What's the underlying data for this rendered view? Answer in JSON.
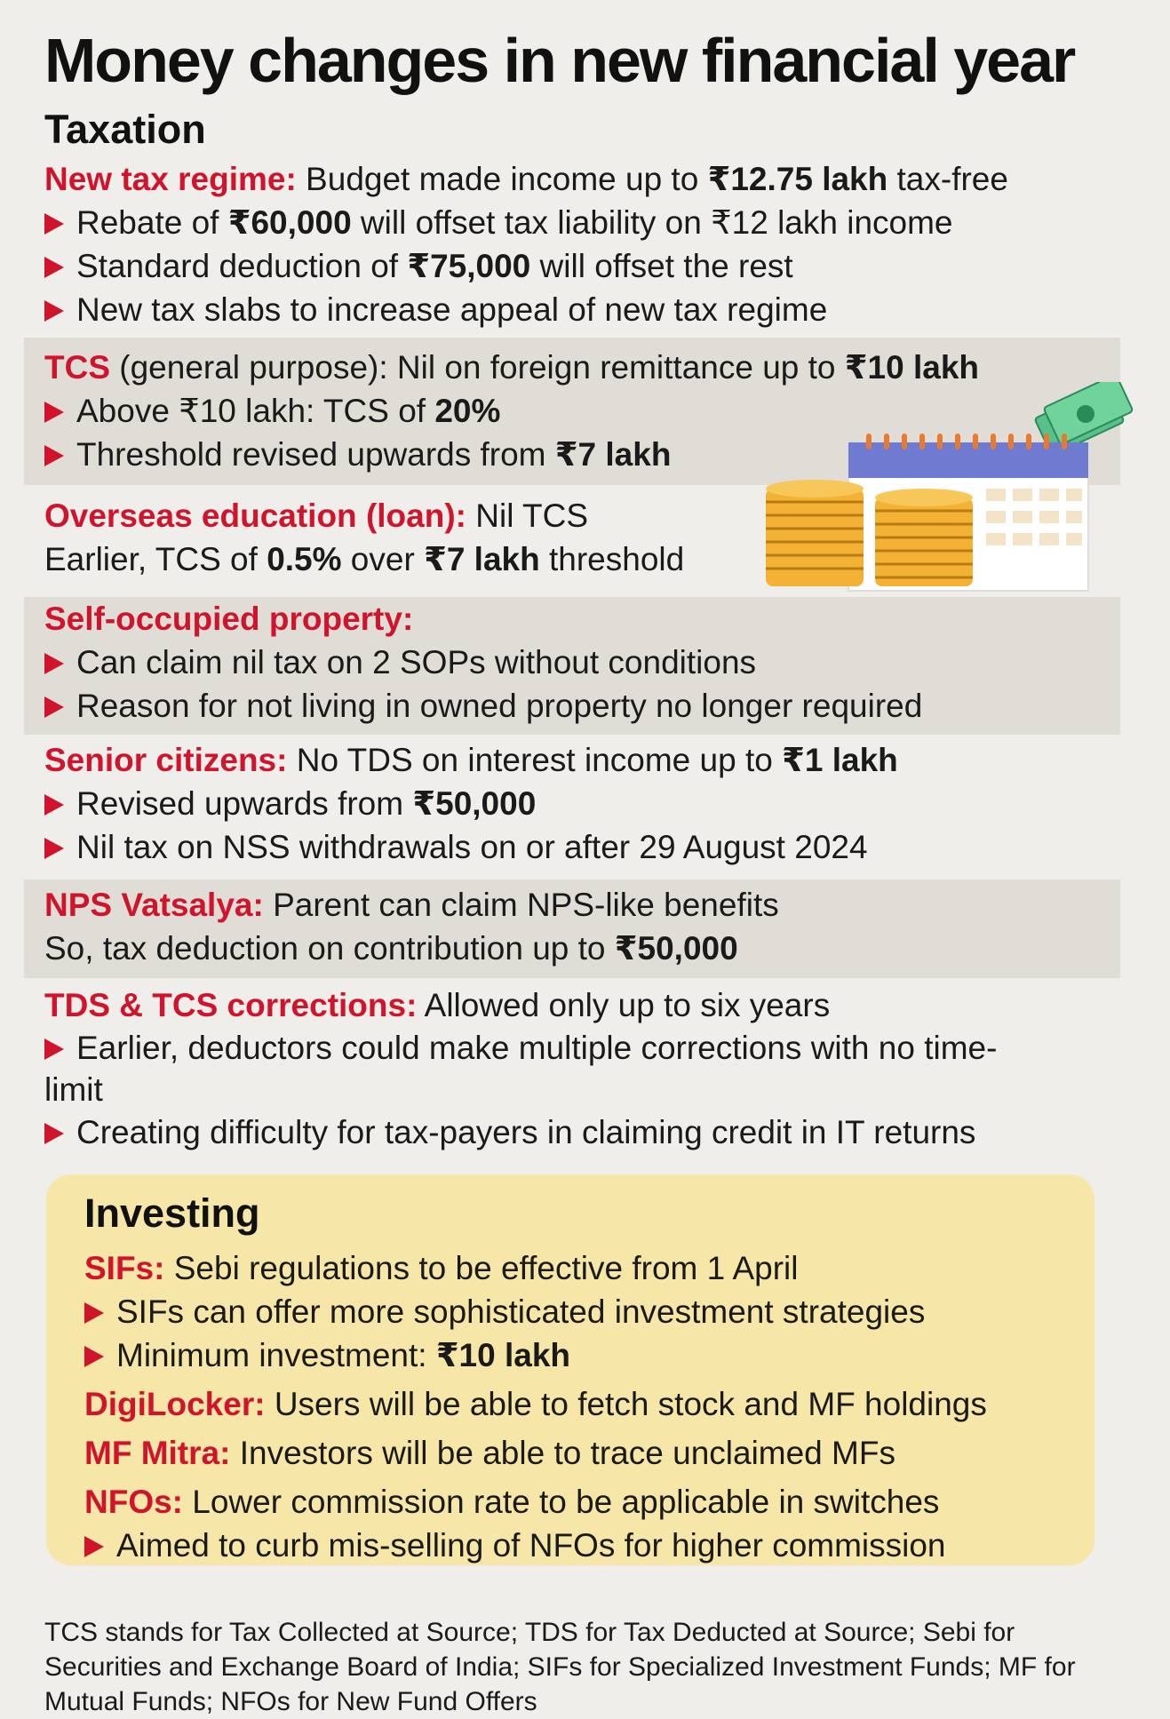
{
  "title": "Money changes in new financial year",
  "taxation": {
    "heading": "Taxation",
    "new_regime": {
      "label": "New tax regime:",
      "text_before": " Budget made income up to ",
      "bold": "₹12.75 lakh",
      "text_after": " tax-free",
      "b1_pre": "Rebate of ",
      "b1_bold": "₹60,000",
      "b1_post": " will offset tax liability on ₹12 lakh income",
      "b2_pre": "Standard deduction of ",
      "b2_bold": "₹75,000",
      "b2_post": " will offset the rest",
      "b3": "New tax slabs to increase appeal of new tax regime"
    },
    "tcs": {
      "label": "TCS",
      "text_before": " (general purpose): Nil on foreign remittance up to ",
      "bold": "₹10 lakh",
      "b1_pre": "Above ₹10 lakh: TCS of ",
      "b1_bold": "20%",
      "b2_pre": "Threshold revised upwards from ",
      "b2_bold": "₹7 lakh"
    },
    "overseas": {
      "label": "Overseas education (loan):",
      "text": " Nil TCS",
      "l2_pre": "Earlier, TCS of ",
      "l2_bold1": "0.5%",
      "l2_mid": " over ",
      "l2_bold2": "₹7 lakh",
      "l2_post": " threshold"
    },
    "sop": {
      "label": "Self-occupied property:",
      "b1": "Can claim nil tax on 2 SOPs without conditions",
      "b2": "Reason for not living in owned property no longer required"
    },
    "senior": {
      "label": "Senior citizens:",
      "text_before": " No TDS on interest income up to ",
      "bold": "₹1 lakh",
      "b1_pre": "Revised upwards from ",
      "b1_bold": "₹50,000",
      "b2": "Nil tax on NSS withdrawals on or after 29 August 2024"
    },
    "nps": {
      "label": "NPS Vatsalya:",
      "text": " Parent can claim NPS-like benefits",
      "l2_pre": "So, tax deduction on contribution up to ",
      "l2_bold": "₹50,000"
    },
    "corrections": {
      "label": "TDS & TCS corrections:",
      "text": " Allowed only up to six years",
      "b1": "Earlier, deductors could make multiple corrections with no time-limit",
      "b2": "Creating difficulty for tax-payers in claiming credit in IT returns"
    }
  },
  "investing": {
    "heading": "Investing",
    "sifs": {
      "label": "SIFs:",
      "text": " Sebi regulations to be effective from 1 April",
      "b1": "SIFs can offer more sophisticated investment strategies",
      "b2_pre": "Minimum investment: ",
      "b2_bold": "₹10 lakh"
    },
    "digilocker": {
      "label": "DigiLocker:",
      "text": " Users will be able to fetch stock and MF holdings"
    },
    "mfmitra": {
      "label": "MF Mitra:",
      "text": " Investors will be able to trace unclaimed MFs"
    },
    "nfos": {
      "label": "NFOs:",
      "text": " Lower commission rate to be applicable in switches",
      "b1": "Aimed to curb mis-selling of NFOs for higher commission"
    }
  },
  "footer": "TCS stands for Tax Collected at Source; TDS for Tax Deducted at Source; Sebi for Securities and Exchange Board of India; SIFs for Specialized Investment Funds; MF for Mutual Funds; NFOs for New Fund Offers",
  "colors": {
    "accent_red": "#d0142c",
    "band_grey": "#e0ddd6",
    "invest_yellow": "#f6e6a8",
    "background": "#efeeea"
  },
  "icons": [
    "bullet-arrow-icon",
    "calendar-coins-money-illustration"
  ]
}
